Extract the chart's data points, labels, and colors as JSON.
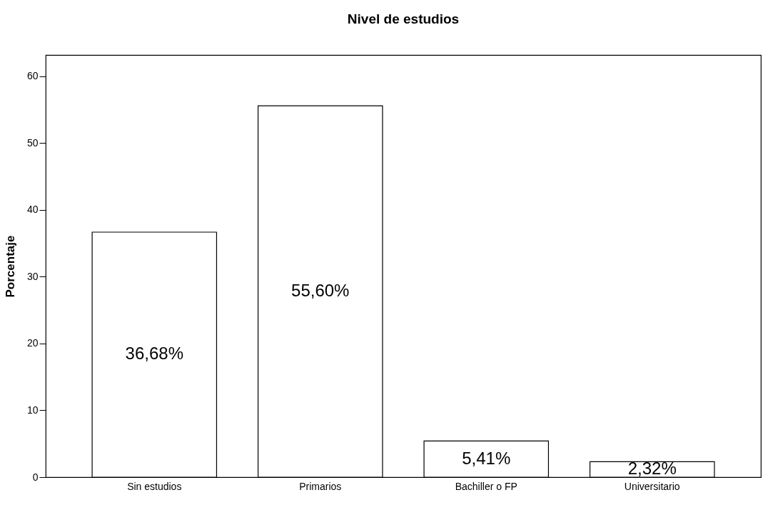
{
  "chart_data": {
    "type": "bar",
    "title": "Nivel de estudios",
    "ylabel": "Porcentaje",
    "categories": [
      "Sin estudios",
      "Primarios",
      "Bachiller o FP",
      "Universitario"
    ],
    "values": [
      36.68,
      55.6,
      5.41,
      2.32
    ],
    "value_labels": [
      "36,68%",
      "55,60%",
      "5,41%",
      "2,32%"
    ],
    "color": "#ffffff",
    "ylim": [
      0,
      63.2
    ],
    "yticks": [
      0,
      10,
      20,
      30,
      40,
      50,
      60
    ],
    "grid": false
  }
}
